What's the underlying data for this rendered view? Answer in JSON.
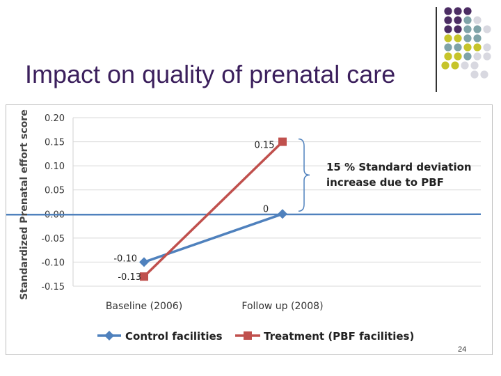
{
  "slide": {
    "title": "Impact on quality of prenatal care",
    "page_number": "24"
  },
  "colors": {
    "title": "#3b1f5c",
    "dot_purple": "#4b2c63",
    "dot_teal": "#7fa3a8",
    "dot_yellow": "#c6c42b",
    "dot_light": "#d8d8e0",
    "control": "#4f81bd",
    "treatment": "#c0504d",
    "zero_line": "#4f81bd"
  },
  "chart_data": {
    "type": "line",
    "title": "",
    "xlabel": "",
    "ylabel": "Standardized Prenatal effort score",
    "categories": [
      "Baseline (2006)",
      "Follow up (2008)"
    ],
    "ylim": [
      -0.15,
      0.2
    ],
    "yticks": [
      "0.20",
      "0.15",
      "0.10",
      "0.05",
      "0.00",
      "-0.05",
      "-0.10",
      "-0.15"
    ],
    "ytick_values": [
      0.2,
      0.15,
      0.1,
      0.05,
      0.0,
      -0.05,
      -0.1,
      -0.15
    ],
    "grid": true,
    "legend_position": "bottom",
    "series": [
      {
        "name": "Control facilities",
        "values": [
          -0.1,
          0.0
        ],
        "labels": [
          "-0.10",
          "0"
        ],
        "marker": "diamond"
      },
      {
        "name": "Treatment (PBF facilities)",
        "values": [
          -0.13,
          0.15
        ],
        "labels": [
          "-0.13",
          "0.15"
        ],
        "marker": "square"
      }
    ],
    "annotation": {
      "line1": "15 % Standard deviation",
      "line2": "increase due to PBF"
    }
  }
}
